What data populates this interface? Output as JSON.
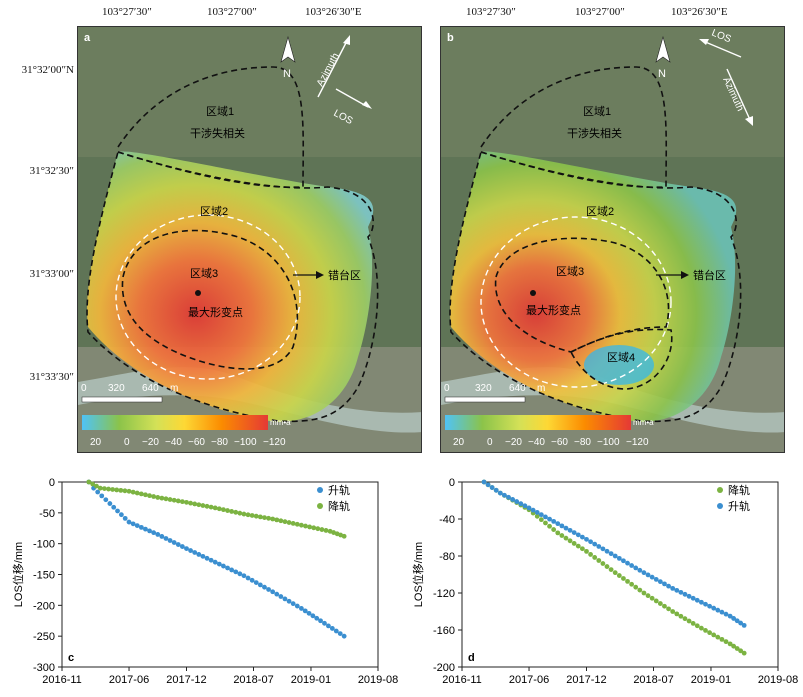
{
  "map_top_labels": [
    "103°27′30″",
    "103°27′00″",
    "103°26′30″E"
  ],
  "map_left_labels": [
    "31°32′00″N",
    "31°32′30″",
    "31°33′00″",
    "31°33′30″"
  ],
  "panel_a": {
    "letter": "a",
    "region1": "区域1",
    "region1_note": "干涉失相关",
    "region2": "区域2",
    "region3": "区域3",
    "max_point": "最大形变点",
    "fault_zone": "错台区",
    "azimuth": "Azimuth",
    "los": "LOS",
    "north": "N",
    "scale_ticks": [
      "0",
      "320",
      "640"
    ],
    "scale_unit": "m",
    "colorbar_ticks": [
      "20",
      "0",
      "−20",
      "−40",
      "−60",
      "−80",
      "−100",
      "−120"
    ],
    "colorbar_unit": "mm•a"
  },
  "panel_b": {
    "letter": "b",
    "region1": "区域1",
    "region1_note": "干涉失相关",
    "region2": "区域2",
    "region3": "区域3",
    "region4": "区域4",
    "max_point": "最大形变点",
    "fault_zone": "错台区",
    "azimuth": "Azimuth",
    "los": "LOS",
    "north": "N",
    "scale_ticks": [
      "0",
      "320",
      "640"
    ],
    "scale_unit": "m",
    "colorbar_ticks": [
      "20",
      "0",
      "−20",
      "−40",
      "−60",
      "−80",
      "−100",
      "−120"
    ],
    "colorbar_unit": "mm•a"
  },
  "colors": {
    "ascending": "#3b8fd0",
    "descending": "#7cb342"
  },
  "chart_data": [
    {
      "panel": "c",
      "type": "scatter",
      "ylabel": "LOS位移/mm",
      "xticks": [
        "2016-11",
        "2017-06",
        "2017-12",
        "2018-07",
        "2019-01",
        "2019-08"
      ],
      "yticks": [
        0,
        -50,
        -100,
        -150,
        -200,
        -250,
        -300
      ],
      "ylim": [
        -300,
        0
      ],
      "legend_position": "top-right",
      "series": [
        {
          "name": "升轨",
          "color": "#3b8fd0",
          "x": [
            "2017-01-25",
            "2017-02-10",
            "2017-04-01",
            "2017-06-01",
            "2017-09-01",
            "2017-12-01",
            "2018-03-01",
            "2018-06-01",
            "2018-09-01",
            "2018-12-01",
            "2019-02-01",
            "2019-04-15"
          ],
          "y": [
            0,
            -10,
            -35,
            -65,
            -85,
            -108,
            -130,
            -152,
            -178,
            -205,
            -225,
            -250
          ]
        },
        {
          "name": "降轨",
          "color": "#7cb342",
          "x": [
            "2017-01-25",
            "2017-03-01",
            "2017-06-01",
            "2017-09-01",
            "2017-12-01",
            "2018-03-01",
            "2018-06-01",
            "2018-09-01",
            "2018-12-01",
            "2019-03-01",
            "2019-04-15"
          ],
          "y": [
            0,
            -10,
            -15,
            -25,
            -33,
            -42,
            -52,
            -60,
            -70,
            -80,
            -88
          ]
        }
      ]
    },
    {
      "panel": "d",
      "type": "scatter",
      "ylabel": "LOS位移/mm",
      "xticks": [
        "2016-11",
        "2017-06",
        "2017-12",
        "2018-07",
        "2019-01",
        "2019-08"
      ],
      "yticks": [
        0,
        -40,
        -80,
        -120,
        -160,
        -200
      ],
      "ylim": [
        -200,
        0
      ],
      "legend_position": "top-right",
      "series": [
        {
          "name": "降轨",
          "color": "#7cb342",
          "x": [
            "2017-01-10",
            "2017-03-01",
            "2017-06-01",
            "2017-09-01",
            "2017-12-01",
            "2018-03-01",
            "2018-06-01",
            "2018-09-01",
            "2018-12-01",
            "2019-03-01",
            "2019-04-15"
          ],
          "y": [
            0,
            -12,
            -30,
            -55,
            -75,
            -98,
            -120,
            -140,
            -158,
            -175,
            -185
          ]
        },
        {
          "name": "升轨",
          "color": "#3b8fd0",
          "x": [
            "2017-01-10",
            "2017-03-01",
            "2017-06-01",
            "2017-09-01",
            "2017-12-01",
            "2018-03-01",
            "2018-06-01",
            "2018-09-01",
            "2018-12-01",
            "2019-03-01",
            "2019-04-15"
          ],
          "y": [
            0,
            -12,
            -28,
            -45,
            -62,
            -80,
            -98,
            -115,
            -130,
            -145,
            -155
          ]
        }
      ]
    }
  ]
}
